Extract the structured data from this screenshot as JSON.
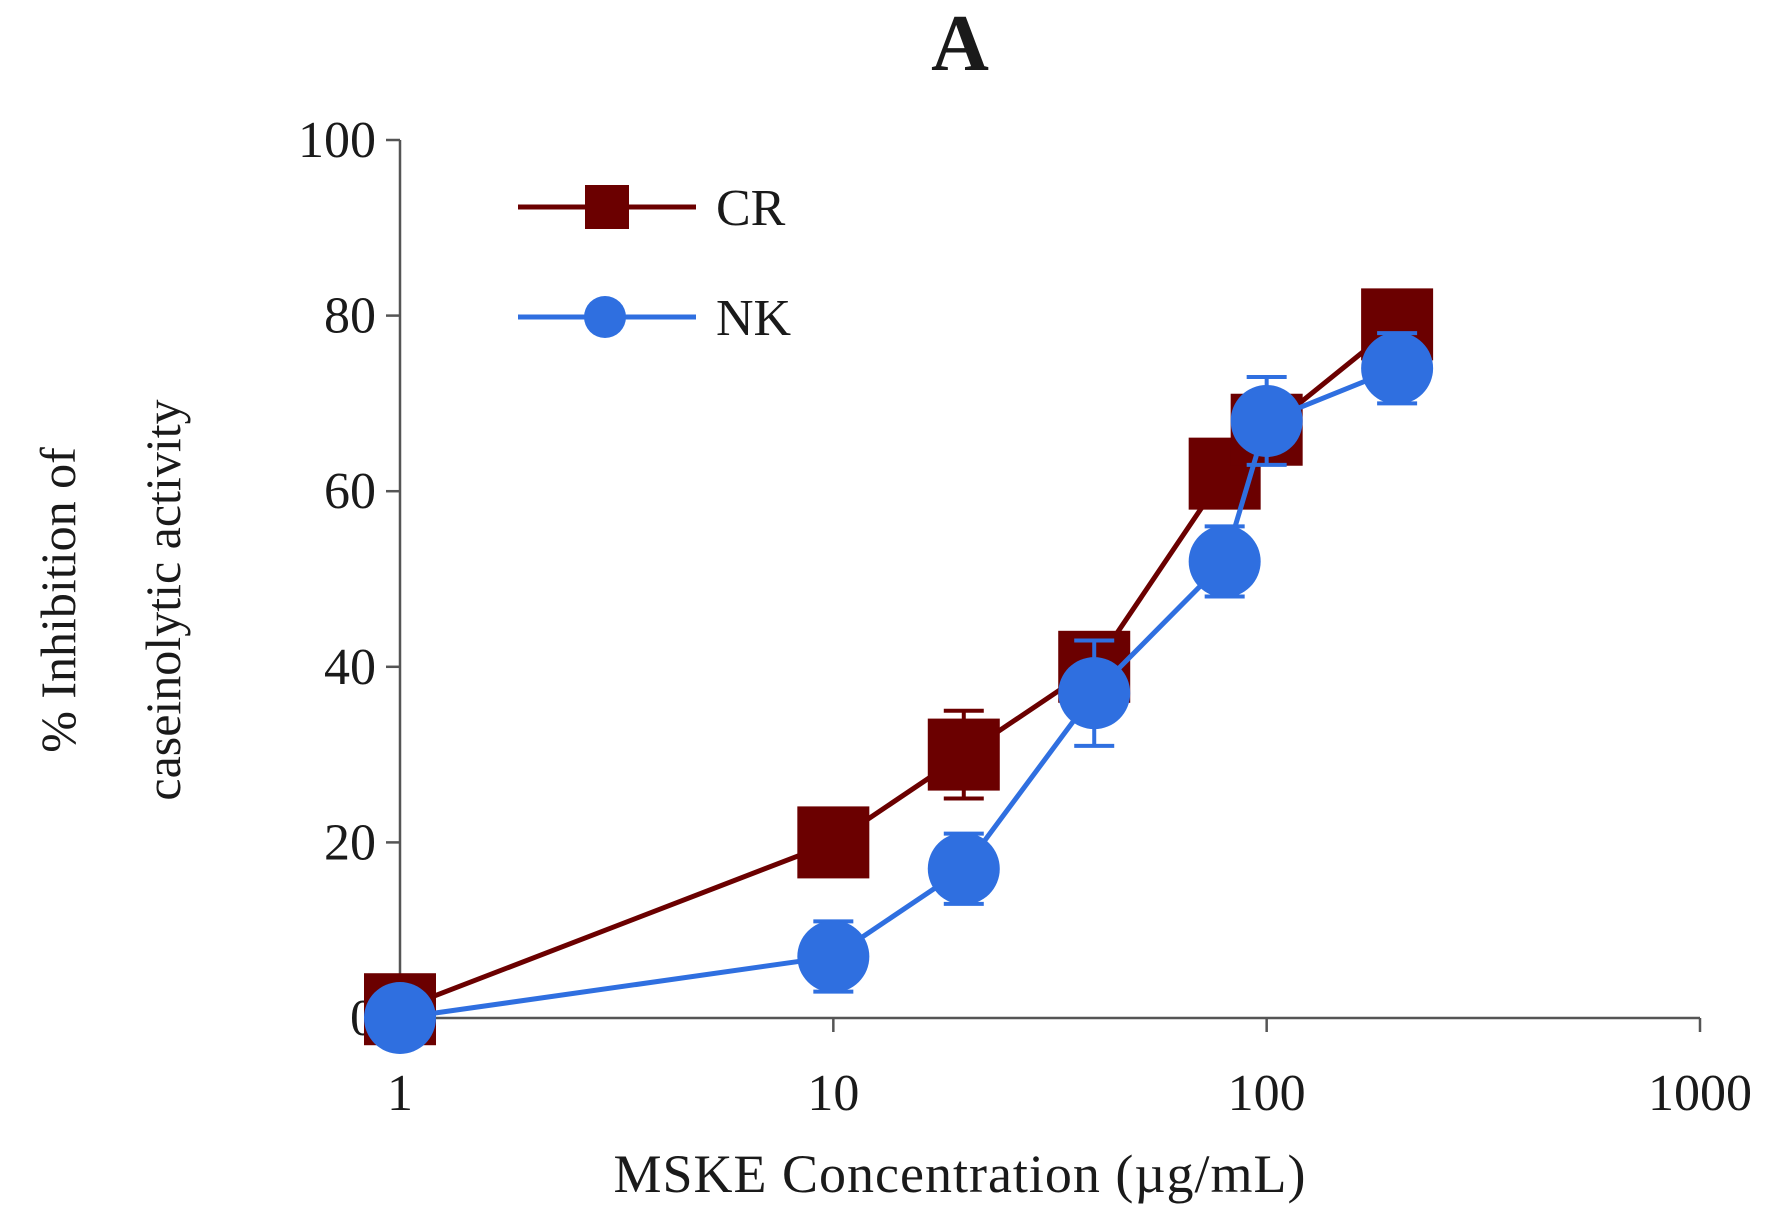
{
  "chart_data": {
    "type": "line",
    "title": "A",
    "xlabel": "MSKE Concentration (µg/mL)",
    "ylabel_line1": "% Inhibition of",
    "ylabel_line2": "caseinolytic activity",
    "xscale": "log",
    "xlim": [
      1,
      1000
    ],
    "ylim": [
      0,
      100
    ],
    "xticks": [
      1,
      10,
      100,
      1000
    ],
    "xtick_labels": [
      "1",
      "10",
      "100",
      "1000"
    ],
    "yticks": [
      0,
      20,
      40,
      60,
      80,
      100
    ],
    "ytick_labels": [
      "0",
      "20",
      "40",
      "60",
      "80",
      "100"
    ],
    "grid": false,
    "legend_position": "top-left",
    "series": [
      {
        "name": "CR",
        "color": "#6b0000",
        "marker": "square",
        "x": [
          1,
          10,
          20,
          40,
          80,
          100,
          200
        ],
        "y": [
          1,
          20,
          30,
          40,
          62,
          67,
          79
        ],
        "err": [
          1,
          2,
          5,
          2,
          3,
          3,
          2
        ]
      },
      {
        "name": "NK",
        "color": "#2f6fe0",
        "marker": "circle",
        "x": [
          1,
          10,
          20,
          40,
          80,
          100,
          200
        ],
        "y": [
          0,
          7,
          17,
          37,
          52,
          68,
          74
        ],
        "err": [
          3,
          4,
          4,
          6,
          4,
          5,
          4
        ]
      }
    ]
  }
}
